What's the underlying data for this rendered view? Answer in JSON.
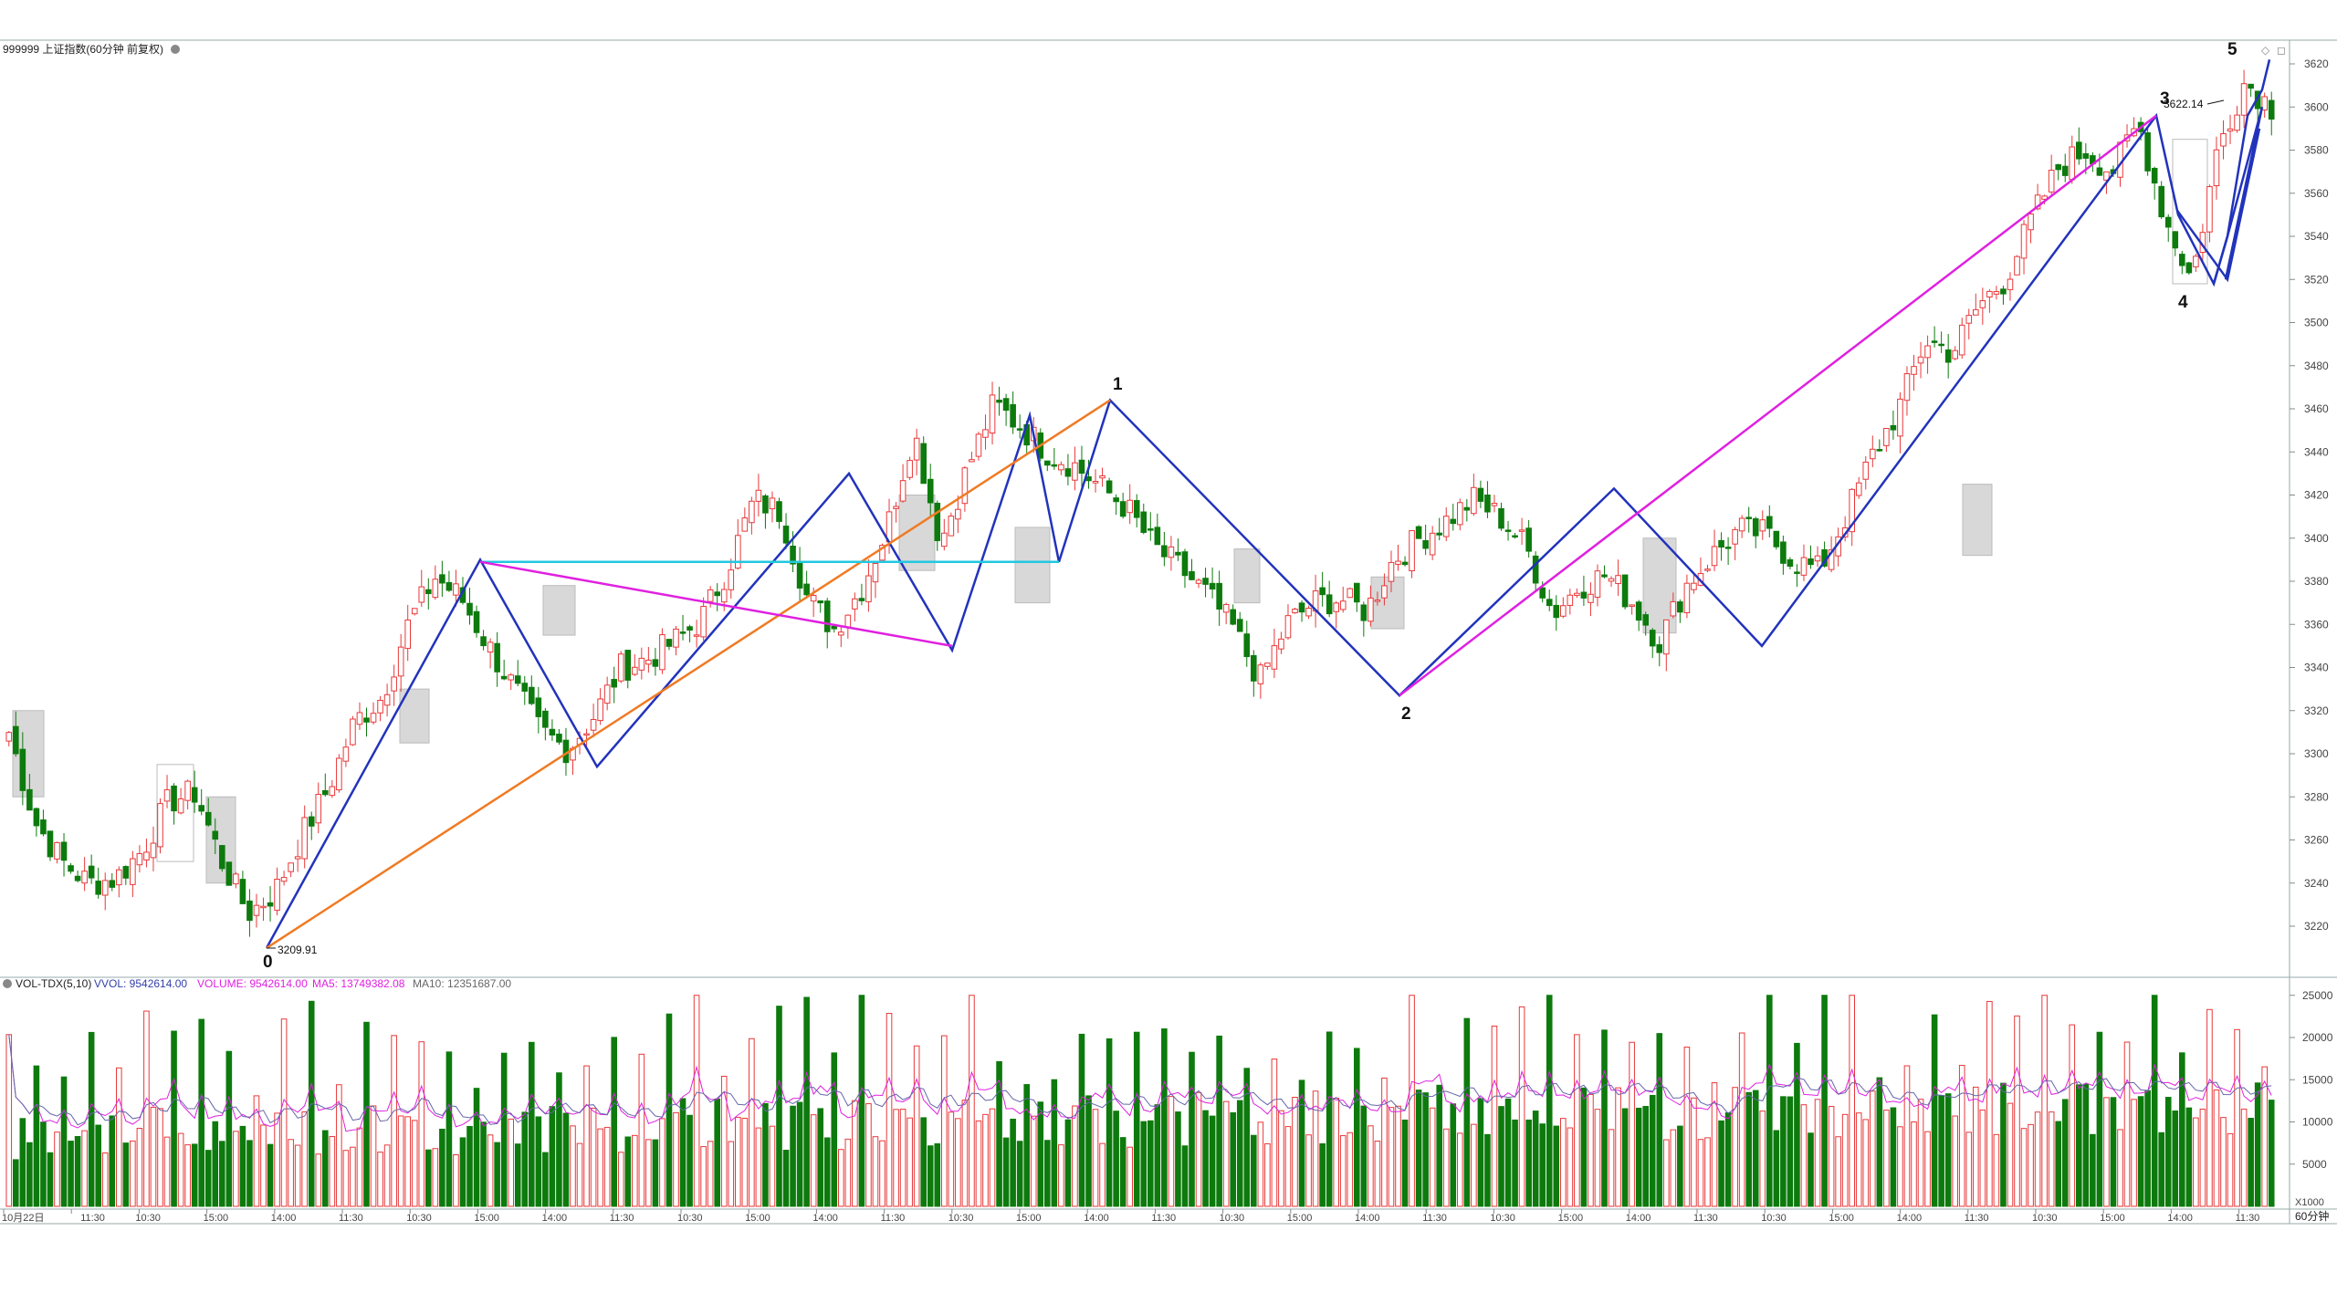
{
  "header": {
    "main_title": "999999 上证指数(60分钟 前复权)",
    "indicator_name": "VOL-TDX(5,10)",
    "vvol_label": "VVOL: 9542614.00",
    "volume_label": "VOLUME: 9542614.00",
    "ma5_label": "MA5: 13749382.08",
    "ma10_label": "MA10: 12351687.00",
    "vol_unit": "X1000",
    "period": "60分钟"
  },
  "colors": {
    "up": "#e8393a",
    "down": "#0d7a0d",
    "wave_blue": "#2233bb",
    "orange": "#f07a24",
    "magenta": "#e020e0",
    "cyan": "#22c8e0",
    "ma5": "#e020e0",
    "ma10": "#6666aa",
    "box": "#cccccc"
  },
  "chart_data": [
    {
      "type": "candlestick",
      "title": "999999 上证指数(60分钟 前复权)",
      "y_ticks": [
        3220,
        3240,
        3260,
        3280,
        3300,
        3320,
        3340,
        3360,
        3380,
        3400,
        3420,
        3440,
        3460,
        3480,
        3500,
        3520,
        3540,
        3560,
        3580,
        3600,
        3620
      ],
      "ylim": [
        3203,
        3626
      ],
      "x_ticks": [
        "10月22日",
        "11:30",
        "10:30",
        "15:00",
        "14:00",
        "11:30",
        "10:30",
        "15:00",
        "14:00",
        "11:30",
        "10:30",
        "15:00",
        "14:00",
        "11:30",
        "10:30",
        "15:00",
        "14:00",
        "11:30",
        "10:30",
        "15:00",
        "14:00",
        "11:30",
        "10:30",
        "15:00",
        "14:00",
        "11:30",
        "10:30",
        "15:00",
        "14:00",
        "11:30",
        "10:30",
        "15:00",
        "14:00",
        "11:30"
      ],
      "wave_points": [
        {
          "label": "0",
          "value": 3209.91
        },
        {
          "label": "1",
          "value": 3464
        },
        {
          "label": "2",
          "value": 3327
        },
        {
          "label": "3",
          "value": 3596
        },
        {
          "label": "4",
          "value": 3518
        },
        {
          "label": "5",
          "value": 3622.14
        }
      ],
      "low_annotation": "3209.91",
      "high_annotation": "3622.14",
      "anchor_closes": [
        3310,
        3268,
        3250,
        3240,
        3242,
        3255,
        3278,
        3282,
        3250,
        3226,
        3236,
        3262,
        3284,
        3315,
        3326,
        3360,
        3382,
        3372,
        3350,
        3330,
        3310,
        3302,
        3318,
        3340,
        3344,
        3352,
        3362,
        3386,
        3418,
        3412,
        3372,
        3358,
        3376,
        3405,
        3450,
        3398,
        3432,
        3462,
        3452,
        3440,
        3434,
        3424,
        3414,
        3396,
        3386,
        3374,
        3358,
        3334,
        3360,
        3370,
        3372,
        3366,
        3390,
        3400,
        3408,
        3418,
        3410,
        3396,
        3365,
        3378,
        3383,
        3370,
        3352,
        3378,
        3392,
        3404,
        3402,
        3390,
        3385,
        3410,
        3438,
        3460,
        3492,
        3486,
        3508,
        3520,
        3548,
        3572,
        3580,
        3570,
        3592,
        3548,
        3520,
        3582,
        3612,
        3600
      ]
    },
    {
      "type": "bar",
      "title": "VOL-TDX(5,10)",
      "y_ticks": [
        5000,
        10000,
        15000,
        20000,
        25000
      ],
      "ylim": [
        0,
        26000
      ],
      "unit": "X1000"
    }
  ]
}
